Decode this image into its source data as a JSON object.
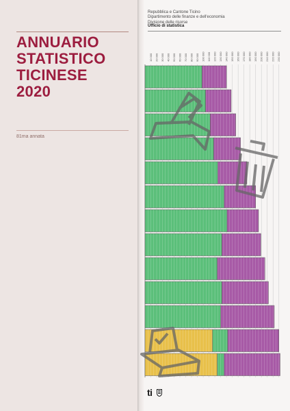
{
  "cover": {
    "title_lines": [
      "ANNUARIO",
      "STATISTICO",
      "TICINESE",
      "2020"
    ],
    "edition": "81ma annata"
  },
  "publisher": {
    "lines": [
      "Repubblica e Cantone Ticino",
      "Dipartimento delle finanze e dell'economia",
      "Divisione delle risorse"
    ],
    "office": "Ufficio di statistica"
  },
  "logo": {
    "text": "ti",
    "icon": "canton-shield-icon"
  },
  "chart_data": {
    "type": "bar",
    "orientation": "horizontal-stacked",
    "ticks": [
      "10 000",
      "20 000",
      "30 000",
      "40 000",
      "50 000",
      "60 000",
      "70 000",
      "80 000",
      "90 000",
      "100 000",
      "110 000",
      "120 000",
      "130 000",
      "140 000",
      "150 000",
      "160 000",
      "170 000",
      "180 000",
      "190 000",
      "200 000",
      "210 000",
      "220 000",
      "230 000"
    ],
    "xlim": [
      0,
      235000
    ],
    "bars": [
      {
        "yellow": 0,
        "green": 98000,
        "purple": 42000
      },
      {
        "yellow": 0,
        "green": 104000,
        "purple": 44000
      },
      {
        "yellow": 0,
        "green": 112000,
        "purple": 44000
      },
      {
        "yellow": 0,
        "green": 118000,
        "purple": 46000
      },
      {
        "yellow": 0,
        "green": 125000,
        "purple": 50000
      },
      {
        "yellow": 0,
        "green": 136000,
        "purple": 54000
      },
      {
        "yellow": 0,
        "green": 141000,
        "purple": 54000
      },
      {
        "yellow": 0,
        "green": 132000,
        "purple": 67000
      },
      {
        "yellow": 0,
        "green": 124000,
        "purple": 82000
      },
      {
        "yellow": 0,
        "green": 132000,
        "purple": 80000
      },
      {
        "yellow": 0,
        "green": 130000,
        "purple": 92000
      },
      {
        "yellow": 116000,
        "green": 26000,
        "purple": 88000
      },
      {
        "yellow": 124000,
        "green": 12000,
        "purple": 96000
      }
    ],
    "colors": {
      "green": "#5bbf7a",
      "purple": "#a75aa6",
      "yellow": "#e8c04a",
      "stroke": "#555555"
    },
    "icons": [
      "ballot-box-icon",
      "trash-can-icon",
      "ballot-box-icon"
    ]
  }
}
